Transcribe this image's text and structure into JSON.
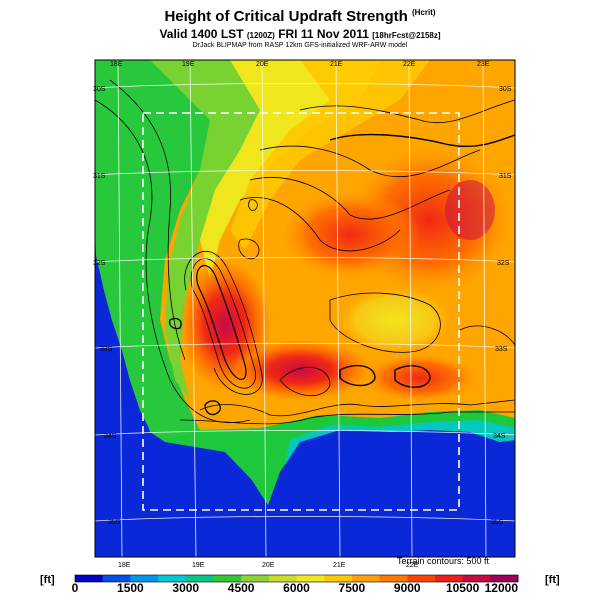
{
  "title": "Height of Critical Updraft Strength",
  "title_suffix": "(Hcrit)",
  "subtitle": "Valid 1400 LST",
  "subtitle_utc": "(1200Z)",
  "subtitle_date": "FRI 11 Nov 2011",
  "subtitle_fcst": "[18hrFcst@2158z]",
  "credit": "DrJack BLIPMAP from RASP 12km GFS-initialized WRF-ARW model",
  "terrain_note": "Terrain contours: 500 ft",
  "colorbar": {
    "unit_left": "[ft]",
    "unit_right": "[ft]",
    "labels": [
      "0",
      "1500",
      "3000",
      "4500",
      "6000",
      "7500",
      "9000",
      "10500",
      "12000"
    ],
    "colors": [
      "#0000c8",
      "#0050e6",
      "#0096f0",
      "#00c8d2",
      "#00c88c",
      "#32c832",
      "#8cd232",
      "#c8dc28",
      "#f0e61e",
      "#ffc800",
      "#ffa000",
      "#ff7800",
      "#ff4600",
      "#f01e1e",
      "#c80a46",
      "#a0005a"
    ]
  },
  "map": {
    "lon_labels_top": [
      "18E",
      "19E",
      "20E",
      "21E",
      "22E",
      "23E"
    ],
    "lon_labels_bottom": [
      "18E",
      "19E",
      "20E",
      "21E",
      "22E"
    ],
    "lat_labels_left": [
      "30S",
      "31S",
      "32S",
      "33S",
      "34S",
      "35S"
    ],
    "lat_labels_right": [
      "30S",
      "31S",
      "32S",
      "33S",
      "34S",
      "35S"
    ],
    "colors": {
      "ocean": "#0a28d8",
      "coast_green": "#1ec83c",
      "land_green": "#78d232",
      "yellow": "#f0e61e",
      "orange": "#ffa000",
      "red": "#f02814",
      "deep_red": "#c80a46"
    }
  }
}
